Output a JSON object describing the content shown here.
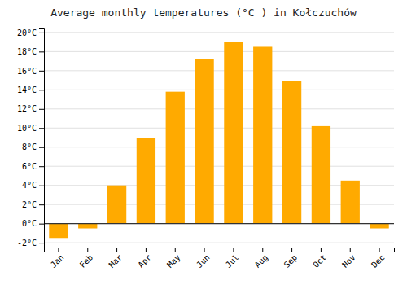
{
  "chart_data": {
    "type": "bar",
    "title": "Average monthly temperatures (°C ) in Kołczuchów",
    "categories": [
      "Jan",
      "Feb",
      "Mar",
      "Apr",
      "May",
      "Jun",
      "Jul",
      "Aug",
      "Sep",
      "Oct",
      "Nov",
      "Dec"
    ],
    "values": [
      -1.5,
      -0.5,
      4.0,
      9.0,
      13.8,
      17.2,
      19.0,
      18.5,
      14.9,
      10.2,
      4.5,
      -0.5
    ],
    "color": "#FFAA00",
    "ylim": [
      -2.5,
      20.5
    ],
    "yticks": [
      {
        "value": -2,
        "label": "-2°C"
      },
      {
        "value": 0,
        "label": "0°C"
      },
      {
        "value": 2,
        "label": "2°C"
      },
      {
        "value": 4,
        "label": "4°C"
      },
      {
        "value": 6,
        "label": "6°C"
      },
      {
        "value": 8,
        "label": "8°C"
      },
      {
        "value": 10,
        "label": "10°C"
      },
      {
        "value": 12,
        "label": "12°C"
      },
      {
        "value": 14,
        "label": "14°C"
      },
      {
        "value": 16,
        "label": "16°C"
      },
      {
        "value": 18,
        "label": "18°C"
      },
      {
        "value": 20,
        "label": "20°C"
      }
    ],
    "grid": true
  }
}
